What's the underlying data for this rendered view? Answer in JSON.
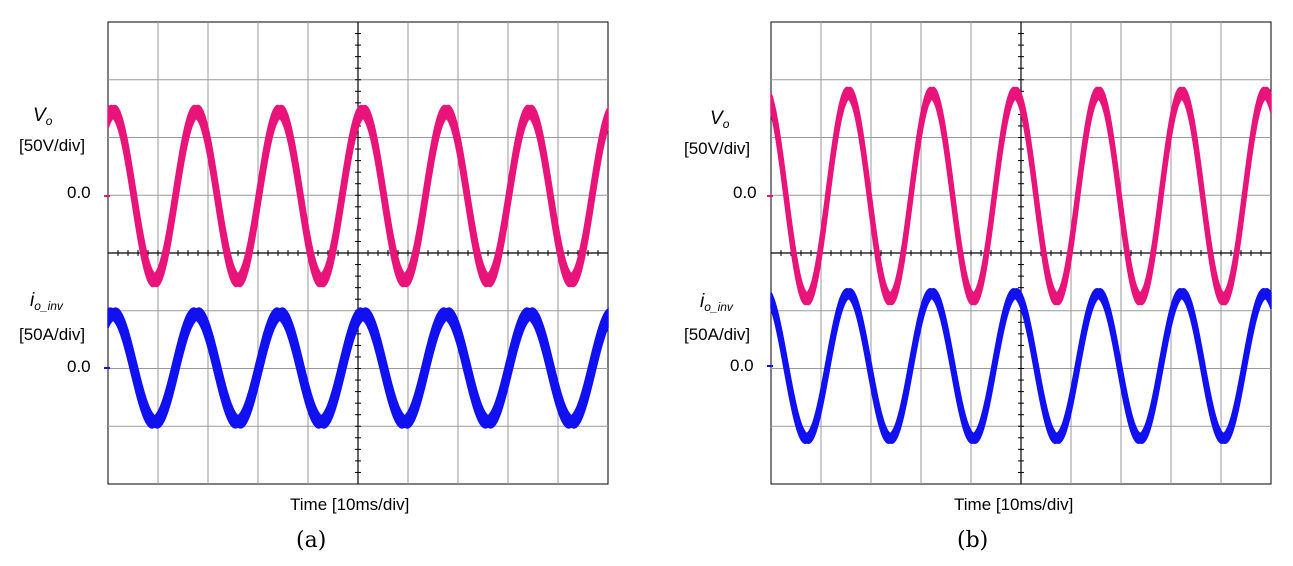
{
  "chart_data": [
    {
      "type": "line",
      "panel_caption": "(a)",
      "xlabel": "Time [10ms/div]",
      "x_divisions": 10,
      "y_divisions": 8,
      "grid": true,
      "series": [
        {
          "name": "Vo",
          "scale_label": "[50V/div]",
          "zero_label": "0.0",
          "color": "#E8147A",
          "amplitude_div": 2.9,
          "ripple_div": 0.6,
          "frequency_hz": 60,
          "offset_div": 0.0
        },
        {
          "name": "io_inv",
          "scale_label": "[50A/div]",
          "zero_label": "0.0",
          "color": "#1010F0",
          "amplitude_div": 1.85,
          "ripple_div": 0.55,
          "frequency_hz": 60,
          "offset_div": 0.0
        }
      ]
    },
    {
      "type": "line",
      "panel_caption": "(b)",
      "xlabel": "Time [10ms/div]",
      "x_divisions": 10,
      "y_divisions": 8,
      "grid": true,
      "series": [
        {
          "name": "Vo",
          "scale_label": "[50V/div]",
          "zero_label": "0.0",
          "color": "#E8147A",
          "amplitude_div": 3.55,
          "ripple_div": 0.55,
          "frequency_hz": 60,
          "offset_div": 0.0
        },
        {
          "name": "io_inv",
          "scale_label": "[50A/div]",
          "zero_label": "0.0",
          "color": "#1010F0",
          "amplitude_div": 2.5,
          "ripple_div": 0.45,
          "frequency_hz": 60,
          "offset_div": 0.0
        }
      ]
    }
  ]
}
